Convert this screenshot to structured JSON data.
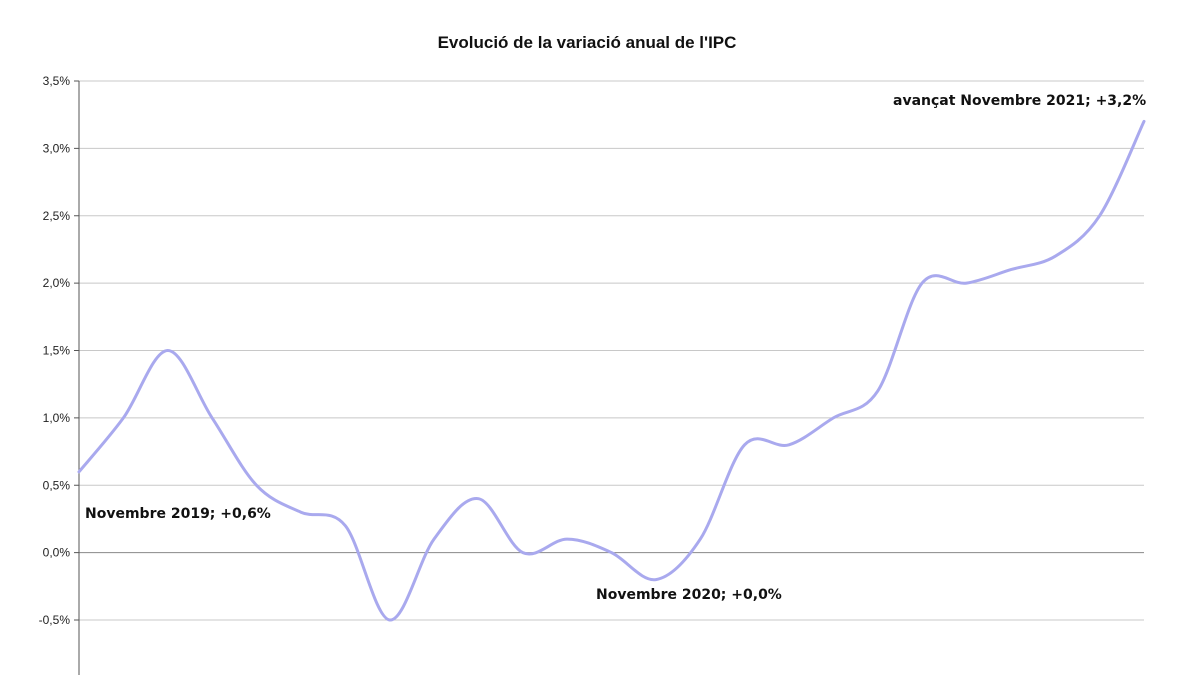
{
  "chart_data": {
    "type": "line",
    "title": "Evolució de la variació anual de l'IPC",
    "xlabel": "",
    "ylabel": "",
    "ylim": [
      -0.5,
      3.5
    ],
    "y_ticks": [
      "3,5%",
      "3,0%",
      "2,5%",
      "2,0%",
      "1,5%",
      "1,0%",
      "0,5%",
      "0,0%",
      "-0,5%"
    ],
    "y_tick_values": [
      3.5,
      3.0,
      2.5,
      2.0,
      1.5,
      1.0,
      0.5,
      0.0,
      -0.5
    ],
    "grid": true,
    "line_color": "#a9a9ee",
    "series": [
      {
        "values": [
          0.6,
          1.0,
          1.5,
          1.0,
          0.5,
          0.3,
          0.2,
          -0.5,
          0.1,
          0.4,
          0.0,
          0.1,
          0.0,
          -0.2,
          0.1,
          0.8,
          0.8,
          1.0,
          1.2,
          2.0,
          2.0,
          2.1,
          2.2,
          2.5,
          3.2
        ]
      }
    ],
    "annotations": [
      "Novembre 2019; +0,6%",
      "Novembre 2020;  +0,0%",
      "avançat Novembre 2021; +3,2%"
    ]
  }
}
